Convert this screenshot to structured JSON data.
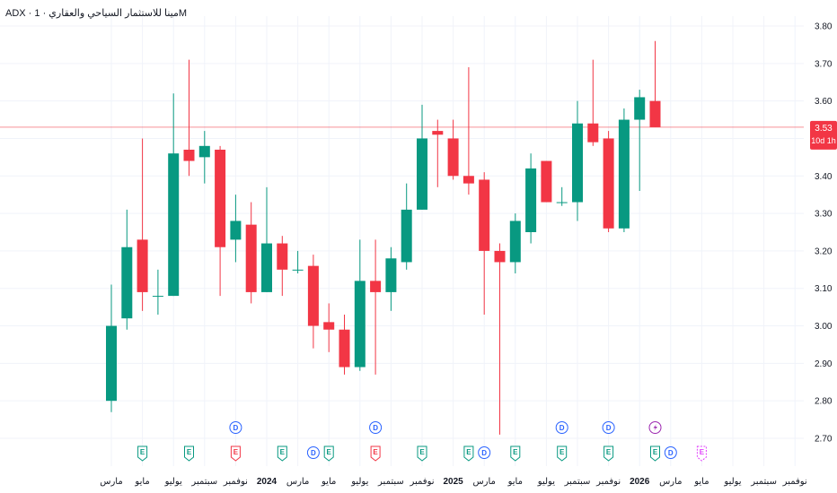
{
  "header": {
    "title": "ADX · مينا للاستثمار السياحي والعقاري · 1M"
  },
  "colors": {
    "up": "#089981",
    "down": "#f23645",
    "grid": "#f0f3fa",
    "axis_text": "#131722",
    "price_line": "#f23645",
    "event_E": "#089981",
    "event_E_red": "#f23645",
    "event_D": "#2962ff",
    "event_S": "#9c27b0",
    "event_E_future": "#e040fb"
  },
  "chart_data": {
    "type": "candlestick",
    "ylim": [
      2.68,
      3.82
    ],
    "yticks": [
      "2.70",
      "2.80",
      "2.90",
      "3.00",
      "3.10",
      "3.20",
      "3.30",
      "3.40",
      "3.50",
      "3.60",
      "3.70",
      "3.80"
    ],
    "current_price": {
      "value": 3.53,
      "label": "3.53",
      "countdown": "10d 1h"
    },
    "candles": [
      {
        "o": 2.8,
        "h": 3.11,
        "l": 2.77,
        "c": 3.0
      },
      {
        "o": 3.02,
        "h": 3.31,
        "l": 2.99,
        "c": 3.21
      },
      {
        "o": 3.23,
        "h": 3.5,
        "l": 3.04,
        "c": 3.09
      },
      {
        "o": 3.08,
        "h": 3.15,
        "l": 3.03,
        "c": 3.08
      },
      {
        "o": 3.08,
        "h": 3.62,
        "l": 3.08,
        "c": 3.46
      },
      {
        "o": 3.47,
        "h": 3.71,
        "l": 3.4,
        "c": 3.44
      },
      {
        "o": 3.45,
        "h": 3.52,
        "l": 3.38,
        "c": 3.48
      },
      {
        "o": 3.47,
        "h": 3.48,
        "l": 3.08,
        "c": 3.21
      },
      {
        "o": 3.23,
        "h": 3.35,
        "l": 3.17,
        "c": 3.28
      },
      {
        "o": 3.27,
        "h": 3.33,
        "l": 3.06,
        "c": 3.09
      },
      {
        "o": 3.09,
        "h": 3.37,
        "l": 3.09,
        "c": 3.22
      },
      {
        "o": 3.22,
        "h": 3.24,
        "l": 3.08,
        "c": 3.15
      },
      {
        "o": 3.15,
        "h": 3.2,
        "l": 3.14,
        "c": 3.15
      },
      {
        "o": 3.16,
        "h": 3.19,
        "l": 2.94,
        "c": 3.0
      },
      {
        "o": 3.01,
        "h": 3.06,
        "l": 2.93,
        "c": 2.99
      },
      {
        "o": 2.99,
        "h": 3.03,
        "l": 2.87,
        "c": 2.89
      },
      {
        "o": 2.89,
        "h": 3.23,
        "l": 2.88,
        "c": 3.12
      },
      {
        "o": 3.12,
        "h": 3.23,
        "l": 2.87,
        "c": 3.09
      },
      {
        "o": 3.09,
        "h": 3.21,
        "l": 3.04,
        "c": 3.18
      },
      {
        "o": 3.17,
        "h": 3.38,
        "l": 3.15,
        "c": 3.31
      },
      {
        "o": 3.31,
        "h": 3.59,
        "l": 3.31,
        "c": 3.5
      },
      {
        "o": 3.52,
        "h": 3.55,
        "l": 3.37,
        "c": 3.51
      },
      {
        "o": 3.5,
        "h": 3.55,
        "l": 3.39,
        "c": 3.4
      },
      {
        "o": 3.4,
        "h": 3.69,
        "l": 3.35,
        "c": 3.38
      },
      {
        "o": 3.39,
        "h": 3.41,
        "l": 3.03,
        "c": 3.2
      },
      {
        "o": 3.2,
        "h": 3.22,
        "l": 2.71,
        "c": 3.17
      },
      {
        "o": 3.17,
        "h": 3.3,
        "l": 3.14,
        "c": 3.28
      },
      {
        "o": 3.25,
        "h": 3.46,
        "l": 3.22,
        "c": 3.42
      },
      {
        "o": 3.44,
        "h": 3.44,
        "l": 3.33,
        "c": 3.33
      },
      {
        "o": 3.33,
        "h": 3.37,
        "l": 3.32,
        "c": 3.33
      },
      {
        "o": 3.33,
        "h": 3.6,
        "l": 3.28,
        "c": 3.54
      },
      {
        "o": 3.54,
        "h": 3.71,
        "l": 3.48,
        "c": 3.49
      },
      {
        "o": 3.5,
        "h": 3.52,
        "l": 3.25,
        "c": 3.26
      },
      {
        "o": 3.26,
        "h": 3.58,
        "l": 3.25,
        "c": 3.55
      },
      {
        "o": 3.55,
        "h": 3.63,
        "l": 3.36,
        "c": 3.61
      },
      {
        "o": 3.6,
        "h": 3.76,
        "l": 3.53,
        "c": 3.53
      }
    ],
    "xticks": [
      {
        "label": "مارس",
        "i": 0,
        "year": false
      },
      {
        "label": "مايو",
        "i": 2,
        "year": false
      },
      {
        "label": "يوليو",
        "i": 4,
        "year": false
      },
      {
        "label": "سبتمبر",
        "i": 6,
        "year": false
      },
      {
        "label": "نوفمبر",
        "i": 8,
        "year": false
      },
      {
        "label": "2024",
        "i": 10,
        "year": true
      },
      {
        "label": "مارس",
        "i": 12,
        "year": false
      },
      {
        "label": "مايو",
        "i": 14,
        "year": false
      },
      {
        "label": "يوليو",
        "i": 16,
        "year": false
      },
      {
        "label": "سبتمبر",
        "i": 18,
        "year": false
      },
      {
        "label": "نوفمبر",
        "i": 20,
        "year": false
      },
      {
        "label": "2025",
        "i": 22,
        "year": true
      },
      {
        "label": "مارس",
        "i": 24,
        "year": false
      },
      {
        "label": "مايو",
        "i": 26,
        "year": false
      },
      {
        "label": "يوليو",
        "i": 28,
        "year": false
      },
      {
        "label": "سبتمبر",
        "i": 30,
        "year": false
      },
      {
        "label": "نوفمبر",
        "i": 32,
        "year": false
      },
      {
        "label": "2026",
        "i": 34,
        "year": true
      },
      {
        "label": "مارس",
        "i": 36,
        "year": false
      },
      {
        "label": "مايو",
        "i": 38,
        "year": false
      },
      {
        "label": "يوليو",
        "i": 40,
        "year": false
      },
      {
        "label": "سبتمبر",
        "i": 42,
        "year": false
      },
      {
        "label": "نوفمبر",
        "i": 44,
        "year": false
      }
    ],
    "events": [
      {
        "type": "E",
        "i": 2,
        "row": 0,
        "style": "up"
      },
      {
        "type": "E",
        "i": 5,
        "row": 0,
        "style": "up"
      },
      {
        "type": "D",
        "i": 8,
        "row": 1,
        "style": "dividend"
      },
      {
        "type": "E",
        "i": 8,
        "row": 0,
        "style": "down"
      },
      {
        "type": "E",
        "i": 11,
        "row": 0,
        "style": "up"
      },
      {
        "type": "D",
        "i": 13,
        "row": 0,
        "style": "dividend"
      },
      {
        "type": "E",
        "i": 14,
        "row": 0,
        "style": "up"
      },
      {
        "type": "D",
        "i": 17,
        "row": 1,
        "style": "dividend"
      },
      {
        "type": "E",
        "i": 17,
        "row": 0,
        "style": "down"
      },
      {
        "type": "E",
        "i": 20,
        "row": 0,
        "style": "up"
      },
      {
        "type": "E",
        "i": 23,
        "row": 0,
        "style": "up"
      },
      {
        "type": "D",
        "i": 24,
        "row": 0,
        "style": "dividend"
      },
      {
        "type": "E",
        "i": 26,
        "row": 0,
        "style": "up"
      },
      {
        "type": "D",
        "i": 29,
        "row": 1,
        "style": "dividend"
      },
      {
        "type": "E",
        "i": 29,
        "row": 0,
        "style": "up"
      },
      {
        "type": "D",
        "i": 32,
        "row": 1,
        "style": "dividend"
      },
      {
        "type": "E",
        "i": 32,
        "row": 0,
        "style": "up"
      },
      {
        "type": "S",
        "i": 35,
        "row": 1,
        "style": "split"
      },
      {
        "type": "E",
        "i": 35,
        "row": 0,
        "style": "up"
      },
      {
        "type": "D",
        "i": 36,
        "row": 0,
        "style": "dividend"
      },
      {
        "type": "E",
        "i": 38,
        "row": 0,
        "style": "future"
      }
    ]
  }
}
